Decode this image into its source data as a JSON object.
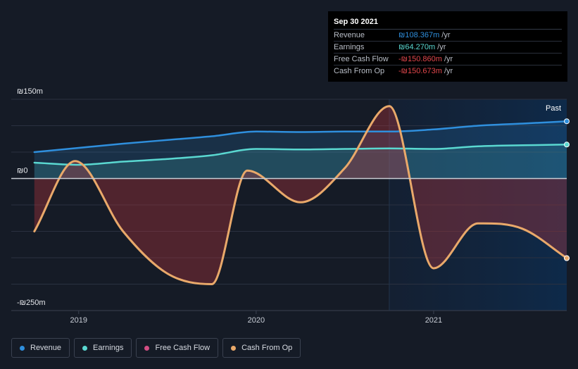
{
  "chart_data": {
    "type": "area",
    "currency": "₪",
    "units": "m",
    "ylim": [
      -250,
      150
    ],
    "y_labels": [
      {
        "value": 150,
        "text": "₪150m"
      },
      {
        "value": 0,
        "text": "₪0"
      },
      {
        "value": -250,
        "text": "-₪250m"
      }
    ],
    "x_ticks": [
      {
        "value": 2019.0,
        "text": "2019"
      },
      {
        "value": 2020.0,
        "text": "2020"
      },
      {
        "value": 2021.0,
        "text": "2021"
      }
    ],
    "xlim": [
      2018.62,
      2021.75
    ],
    "past_start": 2020.75,
    "past_label": "Past",
    "series": [
      {
        "name": "Revenue",
        "color": "#2f8fdd",
        "x": [
          2018.75,
          2019.0,
          2019.25,
          2019.5,
          2019.75,
          2020.0,
          2020.25,
          2020.5,
          2020.75,
          2021.0,
          2021.25,
          2021.5,
          2021.75
        ],
        "values": [
          50,
          58,
          66,
          73,
          80,
          89,
          88,
          89,
          89,
          93,
          100,
          104,
          108.4
        ]
      },
      {
        "name": "Earnings",
        "color": "#5ad8d1",
        "x": [
          2018.75,
          2019.0,
          2019.25,
          2019.5,
          2019.75,
          2020.0,
          2020.25,
          2020.5,
          2020.75,
          2021.0,
          2021.25,
          2021.5,
          2021.75
        ],
        "values": [
          30,
          26,
          32,
          37,
          44,
          56,
          55,
          56,
          57,
          56,
          61,
          63,
          64.3
        ]
      },
      {
        "name": "Free Cash Flow",
        "color": "#d34e83",
        "x": [
          2018.75,
          2018.98,
          2019.25,
          2019.5,
          2019.75,
          2019.95,
          2020.25,
          2020.5,
          2020.75,
          2021.0,
          2021.25,
          2021.5,
          2021.75
        ],
        "values": [
          -100,
          33,
          -100,
          -180,
          -200,
          15,
          -45,
          20,
          137,
          -170,
          -85,
          -95,
          -150.9
        ]
      },
      {
        "name": "Cash From Op",
        "color": "#e9a96a",
        "x": [
          2018.75,
          2018.98,
          2019.25,
          2019.5,
          2019.75,
          2019.95,
          2020.25,
          2020.5,
          2020.75,
          2021.0,
          2021.25,
          2021.5,
          2021.75
        ],
        "values": [
          -100,
          33,
          -100,
          -180,
          -200,
          15,
          -45,
          20,
          137,
          -170,
          -85,
          -95,
          -150.7
        ]
      }
    ]
  },
  "tooltip": {
    "date": "Sep 30 2021",
    "rows": [
      {
        "label": "Revenue",
        "value": "₪108.367m",
        "unit": "/yr",
        "color": "#2f8fdd"
      },
      {
        "label": "Earnings",
        "value": "₪64.270m",
        "unit": "/yr",
        "color": "#5ad8d1"
      },
      {
        "label": "Free Cash Flow",
        "value": "-₪150.860m",
        "unit": "/yr",
        "color": "#e2474c"
      },
      {
        "label": "Cash From Op",
        "value": "-₪150.673m",
        "unit": "/yr",
        "color": "#e2474c"
      }
    ]
  },
  "legend": [
    {
      "label": "Revenue",
      "color": "#2f8fdd"
    },
    {
      "label": "Earnings",
      "color": "#5ad8d1"
    },
    {
      "label": "Free Cash Flow",
      "color": "#d34e83"
    },
    {
      "label": "Cash From Op",
      "color": "#e9a96a"
    }
  ]
}
